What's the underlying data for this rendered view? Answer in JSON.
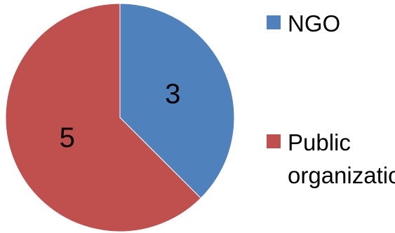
{
  "chart_data": {
    "type": "pie",
    "categories": [
      "NGO",
      "Public organization"
    ],
    "values": [
      3,
      5
    ],
    "data_labels": [
      "3",
      "5"
    ],
    "colors": [
      "#4f81bd",
      "#c0504d"
    ],
    "legend_placement": "right",
    "legend": {
      "items": [
        {
          "label": "NGO",
          "color": "#4f81bd"
        },
        {
          "label": "Public organization",
          "color": "#c0504d"
        }
      ]
    }
  }
}
